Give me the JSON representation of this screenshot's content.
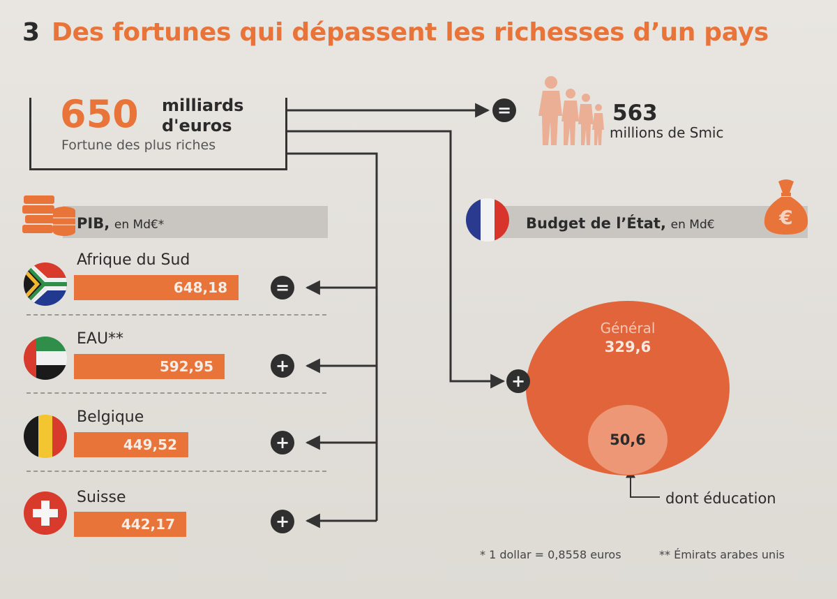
{
  "title": {
    "number": "3",
    "text": "Des fortunes qui dépassent les richesses d’un pays"
  },
  "fortune": {
    "value": "650",
    "unit": "milliards d'euros",
    "label": "Fortune des plus riches"
  },
  "smic": {
    "value": "563",
    "label": "millions de Smic"
  },
  "symbols": {
    "equal": "=",
    "plus": "+"
  },
  "pib_header": {
    "bold": "PIB,",
    "rest": "en Md€*"
  },
  "budget_header": {
    "bold": "Budget de l’État,",
    "rest": "en Md€"
  },
  "icons": {
    "coins": "coin-stack-icon",
    "people": "family-silhouette-icon",
    "money_bag": "euro-money-bag-icon",
    "france_flag": "flag-france-icon"
  },
  "colors": {
    "accent": "#e8743a",
    "dark": "#2f2f2f",
    "band": "#c9c6c1",
    "circle": "#e2643a",
    "circle_inner": "#ee9776"
  },
  "chart_data": [
    {
      "type": "bar",
      "title": "PIB, en Md€*",
      "categories": [
        "Afrique du Sud",
        "EAU**",
        "Belgique",
        "Suisse"
      ],
      "values": [
        648.18,
        592.95,
        449.52,
        442.17
      ],
      "value_labels": [
        "648,18",
        "592,95",
        "449,52",
        "442,17"
      ],
      "comparison_to_fortune": [
        "=",
        "+",
        "+",
        "+"
      ],
      "reference_value": 650
    },
    {
      "type": "pie",
      "title": "Budget de l’État, en Md€",
      "categories": [
        "Général",
        "dont éducation"
      ],
      "values": [
        329.6,
        50.6
      ],
      "value_labels": [
        "329,6",
        "50,6"
      ],
      "category_labels": [
        "Général",
        "dont éducation"
      ],
      "comparison_to_fortune": "+",
      "note": "nested circles"
    }
  ],
  "footnotes": [
    "* 1 dollar = 0,8558 euros",
    "** Émirats arabes unis"
  ]
}
